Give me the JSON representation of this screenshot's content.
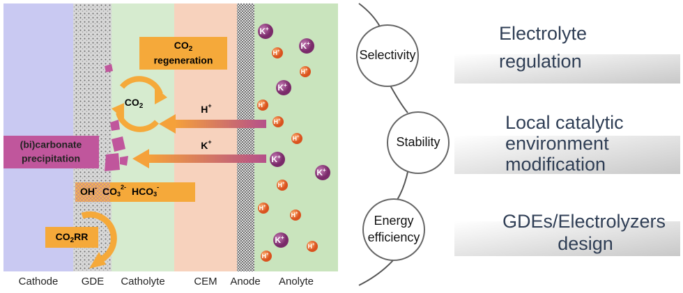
{
  "zones": [
    "Cathode",
    "GDE",
    "Catholyte",
    "CEM",
    "Anode",
    "Anolyte"
  ],
  "co2_regeneration": {
    "formula": "CO",
    "sub": "2",
    "line2": "regeneration"
  },
  "co2_cycle": {
    "formula": "CO",
    "sub": "2"
  },
  "proton_flux": {
    "symbol": "H",
    "charge": "+"
  },
  "potassium_flux": {
    "symbol": "K",
    "charge": "+"
  },
  "precipitation": [
    "(bi)carbonate",
    "precipitation"
  ],
  "anions": {
    "oh": "OH",
    "oh_charge": "-",
    "co3": "CO",
    "co3_sub": "3",
    "co3_charge": "2-",
    "hco3": "HCO",
    "hco3_sub": "3",
    "hco3_charge": "-"
  },
  "co2rr": {
    "formula": "CO",
    "sub": "2",
    "suffix": "RR"
  },
  "ions": [
    {
      "symbol": "K",
      "charge": "+"
    },
    {
      "symbol": "H",
      "charge": "+"
    },
    {
      "symbol": "K",
      "charge": "+"
    },
    {
      "symbol": "H",
      "charge": "+"
    },
    {
      "symbol": "K",
      "charge": "+"
    },
    {
      "symbol": "H",
      "charge": "+"
    },
    {
      "symbol": "H",
      "charge": "+"
    },
    {
      "symbol": "H",
      "charge": "+"
    },
    {
      "symbol": "K",
      "charge": "+"
    },
    {
      "symbol": "K",
      "charge": "+"
    },
    {
      "symbol": "H",
      "charge": "+"
    },
    {
      "symbol": "H",
      "charge": "+"
    },
    {
      "symbol": "H",
      "charge": "+"
    },
    {
      "symbol": "K",
      "charge": "+"
    },
    {
      "symbol": "H",
      "charge": "+"
    },
    {
      "symbol": "H",
      "charge": "+"
    }
  ],
  "challenges": [
    {
      "circle": [
        "Selectivity"
      ],
      "strategy": [
        "Electrolyte",
        "regulation"
      ]
    },
    {
      "circle": [
        "Stability"
      ],
      "strategy": [
        "Local catalytic",
        "environment",
        "modification"
      ]
    },
    {
      "circle": [
        "Energy",
        "efficiency"
      ],
      "strategy": [
        "GDEs/Electrolyzers",
        "design"
      ]
    }
  ]
}
